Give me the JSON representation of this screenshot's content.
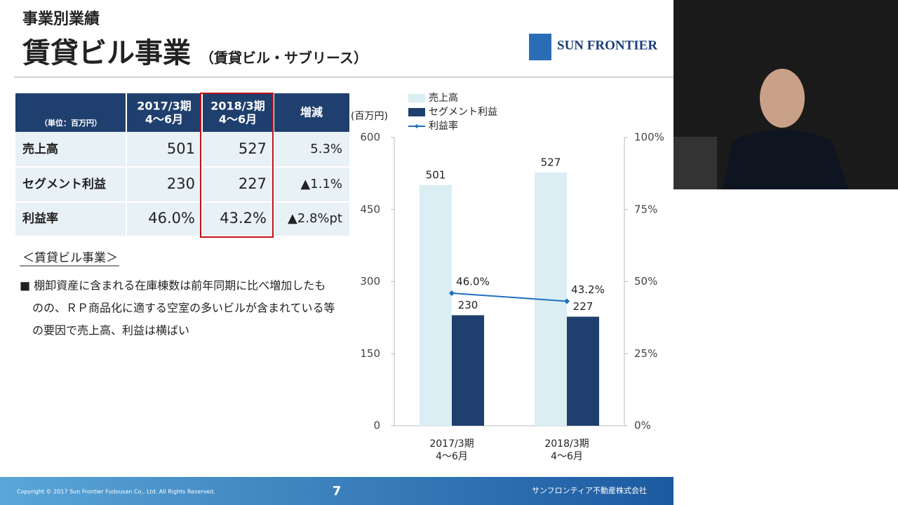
{
  "header": {
    "section": "事業別業績",
    "title": "賃貸ビル事業",
    "subtitle": "（賃貸ビル・サブリース）",
    "logo": "SUN FRONTIER"
  },
  "table": {
    "header": [
      [
        "（単位：百万円）"
      ],
      [
        "2017/3期",
        "4～6月"
      ],
      [
        "2018/3期",
        "4～6月"
      ],
      [
        "増減"
      ]
    ],
    "rows": [
      [
        "売上高",
        "501",
        "527",
        "5.3%"
      ],
      [
        "セグメント利益",
        "230",
        "227",
        "▲1.1%"
      ],
      [
        "利益率",
        "46.0%",
        "43.2%",
        "▲2.8%pt"
      ]
    ]
  },
  "notes": {
    "heading": "＜賃貸ビル事業＞",
    "lines": [
      "■ 棚卸資産に含まれる在庫棟数は前年同期に比べ増加したも",
      "のの、ＲＰ商品化に適する空室の多いビルが含まれている等",
      "の要因で売上高、利益は横ばい"
    ]
  },
  "chart_data": {
    "type": "bar",
    "y_label": "(百万円)",
    "categories": [
      [
        "2017/3期",
        "4～6月"
      ],
      [
        "2018/3期",
        "4～6月"
      ]
    ],
    "series": [
      {
        "name": "売上高",
        "color": "#daeef3",
        "values": [
          501,
          527
        ]
      },
      {
        "name": "セグメント利益",
        "color": "#1f3f6e",
        "values": [
          230,
          227
        ]
      },
      {
        "name": "利益率",
        "color": "#1f6fc0",
        "type": "line",
        "axis": "y2",
        "values": [
          46.0,
          43.2
        ],
        "value_labels": [
          "46.0%",
          "43.2%"
        ]
      }
    ],
    "ylim": [
      0,
      600
    ],
    "yticks": [
      0,
      150,
      300,
      450,
      600
    ],
    "y2lim": [
      0,
      100
    ],
    "y2ticks": [
      {
        "value": 0,
        "label": "0%"
      },
      {
        "value": 25,
        "label": "25%"
      },
      {
        "value": 50,
        "label": "50%"
      },
      {
        "value": 75,
        "label": "75%"
      },
      {
        "value": 100,
        "label": "100%"
      }
    ],
    "legend": "top"
  },
  "footer": {
    "copyright": "Copyright © 2017 Sun Frontier Fudousan Co., Ltd. All Rights Reserved.",
    "page": "7",
    "company": "サンフロンティア不動産株式会社"
  }
}
